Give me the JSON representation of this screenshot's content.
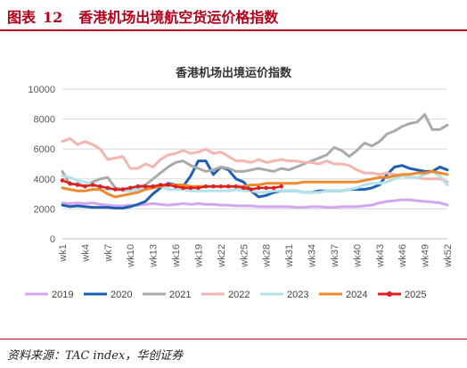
{
  "figure": {
    "label": "图表",
    "number": "12",
    "title": "香港机场出境航空货运价格指数",
    "source": "资料来源：TAC index，华创证券"
  },
  "chart_data": {
    "type": "line",
    "title": "香港机场出境运价指数",
    "xlabel": "",
    "ylabel": "",
    "ylim": [
      0,
      10000
    ],
    "yticks": [
      0,
      2000,
      4000,
      6000,
      8000,
      10000
    ],
    "grid": true,
    "legend_position": "bottom",
    "x": [
      1,
      2,
      3,
      4,
      5,
      6,
      7,
      8,
      9,
      10,
      11,
      12,
      13,
      14,
      15,
      16,
      17,
      18,
      19,
      20,
      21,
      22,
      23,
      24,
      25,
      26,
      27,
      28,
      29,
      30,
      31,
      32,
      33,
      34,
      35,
      36,
      37,
      38,
      39,
      40,
      41,
      42,
      43,
      44,
      45,
      46,
      47,
      48,
      49,
      50,
      51,
      52
    ],
    "xtick_labels": [
      "wk1",
      "wk4",
      "wk7",
      "wk10",
      "wk13",
      "wk16",
      "wk19",
      "wk22",
      "wk25",
      "wk28",
      "wk31",
      "wk34",
      "wk37",
      "wk40",
      "wk43",
      "wk46",
      "wk49",
      "wk52"
    ],
    "series": [
      {
        "name": "2019",
        "color": "#d4a6f0",
        "marker": false,
        "values": [
          2400,
          2350,
          2400,
          2350,
          2400,
          2300,
          2250,
          2200,
          2200,
          2250,
          2250,
          2300,
          2350,
          2300,
          2250,
          2300,
          2350,
          2300,
          2350,
          2300,
          2300,
          2250,
          2250,
          2200,
          2200,
          2200,
          2150,
          2150,
          2150,
          2150,
          2150,
          2100,
          2100,
          2150,
          2150,
          2100,
          2100,
          2150,
          2150,
          2150,
          2200,
          2250,
          2400,
          2500,
          2550,
          2600,
          2600,
          2550,
          2500,
          2450,
          2400,
          2250
        ]
      },
      {
        "name": "2020",
        "color": "#1f5fb3",
        "marker": false,
        "values": [
          2250,
          2150,
          2200,
          2150,
          2100,
          2100,
          2100,
          2050,
          2050,
          2150,
          2300,
          2500,
          3000,
          3400,
          3700,
          3600,
          3500,
          4200,
          5200,
          5200,
          4300,
          4800,
          4600,
          4000,
          3800,
          3200,
          2800,
          2900,
          3100,
          3200,
          3200,
          3200,
          3100,
          3100,
          3200,
          3200,
          3200,
          3200,
          3300,
          3300,
          3300,
          3400,
          3600,
          4300,
          4800,
          4900,
          4700,
          4600,
          4500,
          4500,
          4800,
          4600
        ]
      },
      {
        "name": "2021",
        "color": "#aaaaaa",
        "marker": false,
        "values": [
          4500,
          3600,
          3700,
          3500,
          3800,
          4000,
          4100,
          3400,
          3300,
          3400,
          3500,
          3600,
          4000,
          4400,
          4800,
          5100,
          5200,
          4900,
          4700,
          4500,
          4600,
          4800,
          4700,
          4500,
          4500,
          4600,
          4700,
          4600,
          4500,
          4700,
          4600,
          4800,
          5000,
          5200,
          5400,
          5600,
          6100,
          5900,
          5500,
          5900,
          6400,
          6200,
          6500,
          7000,
          7200,
          7500,
          7700,
          7800,
          8300,
          7300,
          7300,
          7600
        ]
      },
      {
        "name": "2022",
        "color": "#f2b5b0",
        "marker": false,
        "values": [
          6500,
          6700,
          6300,
          6500,
          6300,
          6000,
          5300,
          5400,
          5500,
          4700,
          4700,
          5000,
          4800,
          5300,
          5600,
          5700,
          5900,
          5700,
          5800,
          6000,
          5700,
          5800,
          5500,
          5200,
          5200,
          5100,
          5300,
          5100,
          5200,
          5300,
          5200,
          5200,
          5100,
          5100,
          5000,
          5200,
          5000,
          5000,
          4900,
          4600,
          4400,
          4400,
          4300,
          4400,
          4300,
          4200,
          4100,
          4100,
          4000,
          4000,
          4000,
          3800
        ]
      },
      {
        "name": "2023",
        "color": "#b3e2ea",
        "marker": false,
        "values": [
          4200,
          4100,
          3900,
          3800,
          3600,
          3400,
          3300,
          3300,
          3200,
          3200,
          3300,
          3400,
          3500,
          3500,
          3300,
          3300,
          3300,
          3200,
          3200,
          3200,
          3200,
          3200,
          3200,
          3300,
          3200,
          3200,
          3100,
          3100,
          3200,
          3200,
          3200,
          3200,
          3100,
          3100,
          3100,
          3200,
          3200,
          3200,
          3300,
          3400,
          3600,
          3700,
          3700,
          3800,
          4000,
          4200,
          4100,
          4100,
          4300,
          4500,
          4200,
          3600
        ]
      },
      {
        "name": "2024",
        "color": "#ee8a2e",
        "marker": false,
        "values": [
          3400,
          3300,
          3200,
          3200,
          3300,
          3300,
          3000,
          2800,
          2900,
          3000,
          3100,
          3300,
          3400,
          3500,
          3600,
          3600,
          3600,
          3500,
          3500,
          3500,
          3500,
          3500,
          3500,
          3500,
          3500,
          3600,
          3600,
          3700,
          3700,
          3700,
          3700,
          3700,
          3800,
          3800,
          3800,
          3800,
          3800,
          3800,
          3800,
          3800,
          3900,
          4000,
          4100,
          4100,
          4200,
          4300,
          4300,
          4400,
          4400,
          4500,
          4400,
          4300
        ]
      },
      {
        "name": "2025",
        "color": "#e02020",
        "marker": true,
        "values": [
          3900,
          3700,
          3600,
          3500,
          3600,
          3500,
          3400,
          3300,
          3300,
          3400,
          3500,
          3500,
          3500,
          3600,
          3600,
          3500,
          3400,
          3400,
          3400,
          3500,
          3500,
          3500,
          3500,
          3500,
          3400,
          3300,
          3400,
          3400,
          3400,
          3500,
          null,
          null,
          null,
          null,
          null,
          null,
          null,
          null,
          null,
          null,
          null,
          null,
          null,
          null,
          null,
          null,
          null,
          null,
          null,
          null,
          null,
          null
        ]
      }
    ]
  }
}
